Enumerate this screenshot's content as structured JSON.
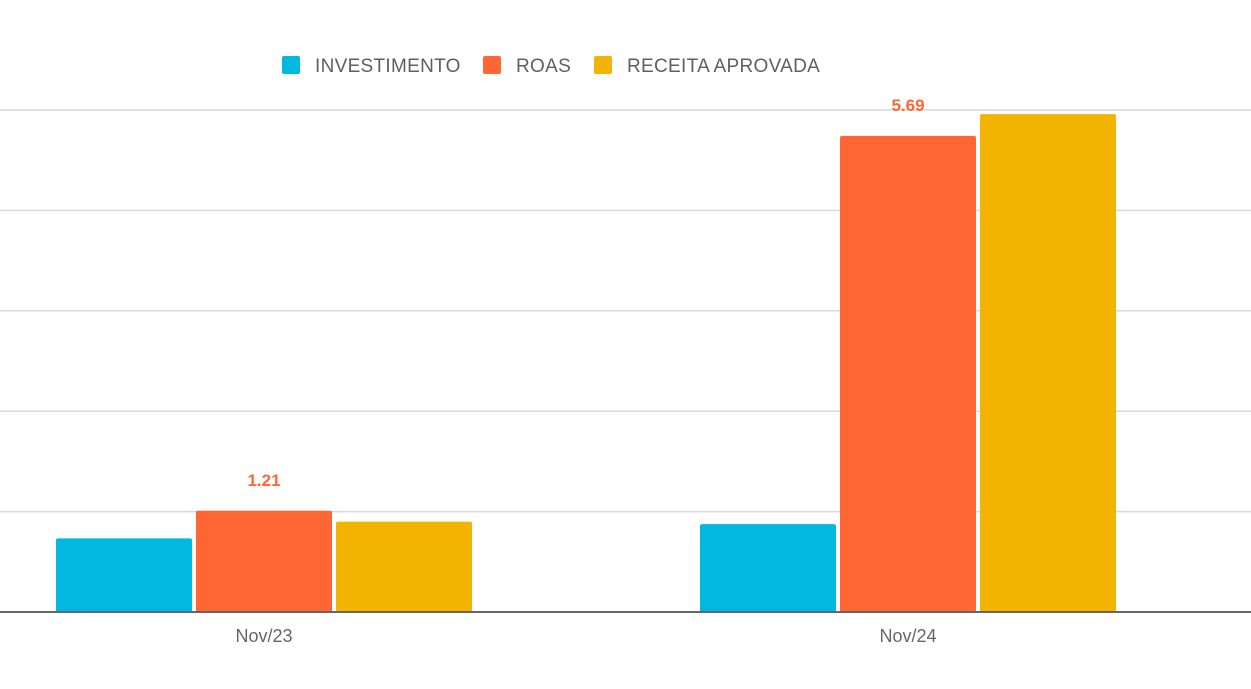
{
  "chart_data": {
    "type": "bar",
    "title": "",
    "xlabel": "",
    "ylabel": "",
    "categories": [
      "Nov/23",
      "Nov/24"
    ],
    "series": [
      {
        "name": "INVESTIMENTO",
        "color": "#00b8e0",
        "values": [
          0.88,
          1.05
        ],
        "labels": [
          "",
          ""
        ]
      },
      {
        "name": "ROAS",
        "color": "#ff6633",
        "values": [
          1.21,
          5.69
        ],
        "labels": [
          "1.21",
          "5.69"
        ]
      },
      {
        "name": "RECEITA APROVADA",
        "color": "#f2b400",
        "values": [
          1.08,
          5.95
        ],
        "labels": [
          "",
          ""
        ]
      }
    ],
    "ylim": [
      0,
      6
    ],
    "yticks": [
      0,
      1.2,
      2.4,
      3.6,
      4.8,
      6.0
    ],
    "y_tick_labels_visible": false,
    "grid": true,
    "legend_position": "top-center"
  }
}
